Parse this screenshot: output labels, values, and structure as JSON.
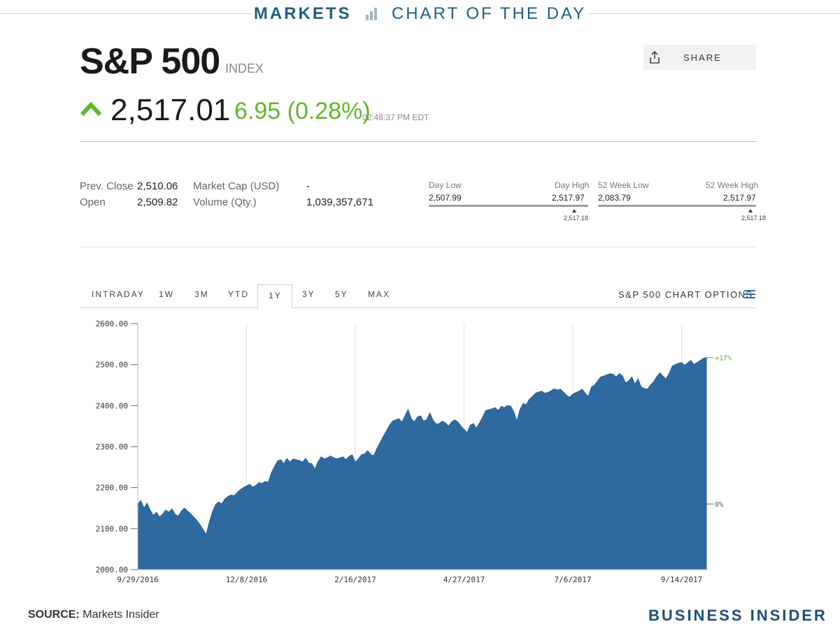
{
  "banner": {
    "left": "MARKETS",
    "right": "CHART OF THE DAY"
  },
  "header": {
    "title": "S&P 500",
    "type": "INDEX",
    "share_label": "SHARE",
    "price": "2,517.01",
    "change": "6.95 (0.28%)",
    "timestamp": "02:48:37 PM EDT",
    "colors": {
      "up": "#5cb82a",
      "brand": "#1e5f86"
    }
  },
  "stats": {
    "prev_close_label": "Prev. Close",
    "prev_close": "2,510.06",
    "open_label": "Open",
    "open": "2,509.82",
    "market_cap_label": "Market Cap (USD)",
    "market_cap": "-",
    "volume_label": "Volume (Qty.)",
    "volume": "1,039,357,671",
    "day_low_label": "Day Low",
    "day_low": "2,507.99",
    "day_high_label": "Day High",
    "day_high": "2,517.97",
    "day_marker": "2,517.18",
    "wk52_low_label": "52 Week Low",
    "wk52_low": "2,083.79",
    "wk52_high_label": "52 Week High",
    "wk52_high": "2,517.97",
    "wk52_marker": "2,517.18"
  },
  "tabs": [
    "INTRADAY",
    "1W",
    "3M",
    "YTD",
    "1Y",
    "3Y",
    "5Y",
    "MAX"
  ],
  "active_tab": "1Y",
  "chart_options_label": "S&P 500 CHART OPTIONS",
  "chart_data": {
    "type": "area",
    "color": "#2e6aa0",
    "ylim": [
      2000,
      2600
    ],
    "yticks": [
      "2600.00",
      "2500.00",
      "2400.00",
      "2300.00",
      "2200.00",
      "2100.00",
      "2000.00"
    ],
    "xticks": [
      "9/29/2016",
      "12/8/2016",
      "2/16/2017",
      "4/27/2017",
      "7/6/2017",
      "9/14/2017"
    ],
    "right_labels": [
      "+17%",
      "0%"
    ],
    "values": [
      2160,
      2168,
      2150,
      2162,
      2145,
      2132,
      2140,
      2128,
      2135,
      2145,
      2140,
      2148,
      2135,
      2130,
      2142,
      2150,
      2143,
      2136,
      2128,
      2120,
      2110,
      2098,
      2085,
      2115,
      2140,
      2158,
      2165,
      2160,
      2172,
      2178,
      2182,
      2180,
      2188,
      2195,
      2200,
      2204,
      2208,
      2201,
      2205,
      2212,
      2210,
      2215,
      2213,
      2236,
      2251,
      2265,
      2268,
      2258,
      2271,
      2262,
      2270,
      2268,
      2266,
      2262,
      2271,
      2260,
      2258,
      2245,
      2263,
      2275,
      2270,
      2272,
      2277,
      2273,
      2270,
      2272,
      2275,
      2268,
      2276,
      2280,
      2262,
      2270,
      2280,
      2282,
      2290,
      2280,
      2278,
      2296,
      2310,
      2325,
      2338,
      2352,
      2362,
      2365,
      2368,
      2360,
      2375,
      2390,
      2368,
      2360,
      2372,
      2375,
      2362,
      2366,
      2382,
      2365,
      2355,
      2356,
      2362,
      2358,
      2350,
      2360,
      2365,
      2360,
      2350,
      2342,
      2334,
      2352,
      2356,
      2345,
      2358,
      2372,
      2388,
      2390,
      2392,
      2395,
      2388,
      2398,
      2395,
      2400,
      2399,
      2385,
      2362,
      2390,
      2405,
      2402,
      2415,
      2422,
      2430,
      2433,
      2435,
      2430,
      2432,
      2436,
      2441,
      2438,
      2440,
      2433,
      2425,
      2420,
      2428,
      2432,
      2435,
      2440,
      2430,
      2422,
      2445,
      2450,
      2460,
      2470,
      2472,
      2475,
      2478,
      2476,
      2470,
      2478,
      2472,
      2455,
      2460,
      2470,
      2452,
      2465,
      2445,
      2442,
      2440,
      2450,
      2458,
      2470,
      2480,
      2472,
      2465,
      2478,
      2496,
      2500,
      2503,
      2505,
      2498,
      2504,
      2510,
      2500,
      2505,
      2510,
      2515,
      2517
    ],
    "series": [
      {
        "values_ref": "values",
        "x_start": "9/29/2016",
        "x_end": "9/22/2017"
      }
    ]
  },
  "footer": {
    "source_label": "SOURCE:",
    "source": "Markets Insider",
    "brand": "BUSINESS INSIDER"
  }
}
